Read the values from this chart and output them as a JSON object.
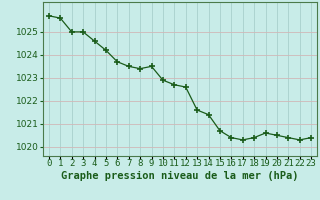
{
  "hours": [
    0,
    1,
    2,
    3,
    4,
    5,
    6,
    7,
    8,
    9,
    10,
    11,
    12,
    13,
    14,
    15,
    16,
    17,
    18,
    19,
    20,
    21,
    22,
    23
  ],
  "pressure": [
    1025.7,
    1025.6,
    1025.0,
    1025.0,
    1024.6,
    1024.2,
    1023.7,
    1023.5,
    1023.4,
    1023.5,
    1022.9,
    1022.7,
    1022.6,
    1021.6,
    1021.4,
    1020.7,
    1020.4,
    1020.3,
    1020.4,
    1020.6,
    1020.5,
    1020.4,
    1020.3,
    1020.4
  ],
  "line_color": "#1a5c1a",
  "marker_color": "#1a5c1a",
  "bg_color": "#c8ece8",
  "grid_color_h": "#d0b8b8",
  "grid_color_v": "#a8d0cc",
  "xlabel": "Graphe pression niveau de la mer (hPa)",
  "ylim": [
    1019.6,
    1026.3
  ],
  "yticks": [
    1020,
    1021,
    1022,
    1023,
    1024,
    1025
  ],
  "xlim": [
    -0.5,
    23.5
  ],
  "tick_fontsize": 6.5,
  "xlabel_fontsize": 7.5
}
